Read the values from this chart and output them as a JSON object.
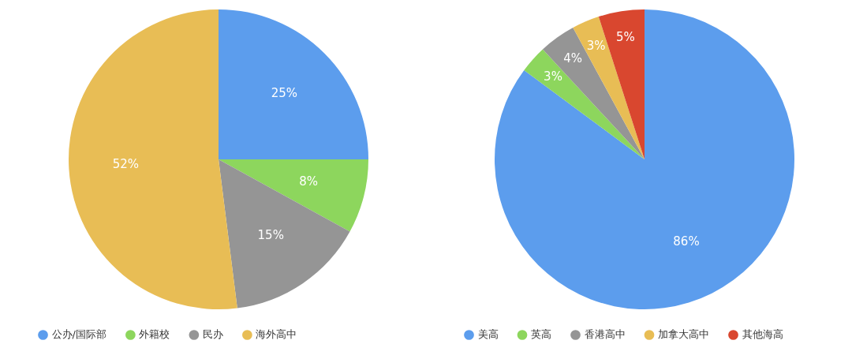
{
  "chart_data": [
    {
      "type": "pie",
      "categories": [
        "公办/国际部",
        "外籍校",
        "民办",
        "海外高中"
      ],
      "values": [
        25,
        8,
        15,
        52
      ],
      "colors": [
        "#5c9ded",
        "#8dd65d",
        "#959595",
        "#e8bd55"
      ],
      "value_labels": [
        "25%",
        "8%",
        "15%",
        "52%"
      ],
      "legend": "bottom"
    },
    {
      "type": "pie",
      "categories": [
        "美高",
        "英高",
        "香港高中",
        "加拿大高中",
        "其他海高"
      ],
      "values": [
        86,
        3,
        4,
        3,
        5
      ],
      "colors": [
        "#5c9ded",
        "#8dd65d",
        "#959595",
        "#e8bd55",
        "#d9472f"
      ],
      "value_labels": [
        "86%",
        "3%",
        "4%",
        "3%",
        "5%"
      ],
      "legend": "bottom"
    }
  ]
}
